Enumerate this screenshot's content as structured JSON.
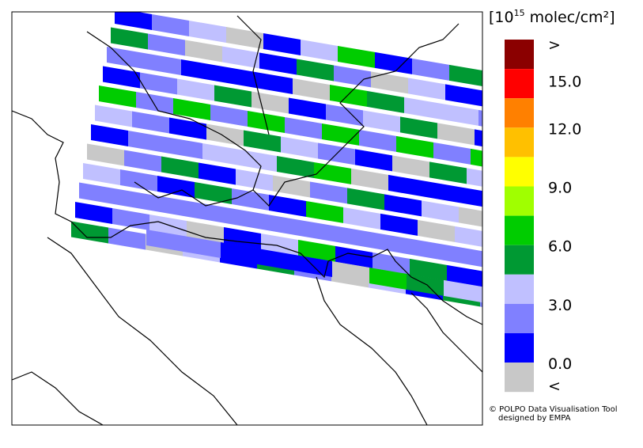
{
  "legend": {
    "unit_prefix": "[10",
    "unit_exponent": "15",
    "unit_suffix": " molec/cm²]",
    "labels": [
      ">",
      "15.0",
      "12.0",
      "9.0",
      "6.0",
      "3.0",
      "0.0",
      "<"
    ]
  },
  "credit": [
    "© POLPO Data Visualisation Tool",
    "designed by EMPA"
  ]
}
